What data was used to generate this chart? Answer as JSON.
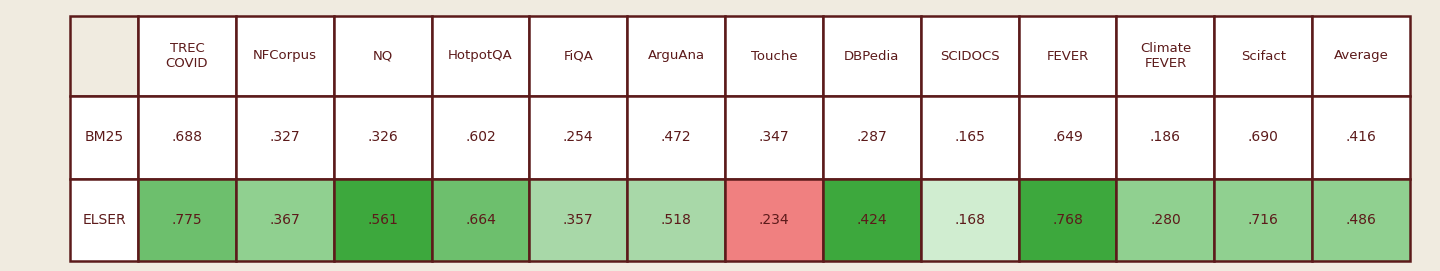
{
  "columns": [
    "TREC\nCOVID",
    "NFCorpus",
    "NQ",
    "HotpotQA",
    "FiQA",
    "ArguAna",
    "Touche",
    "DBPedia",
    "SCIDOCS",
    "FEVER",
    "Climate\nFEVER",
    "Scifact",
    "Average"
  ],
  "rows": [
    "BM25",
    "ELSER"
  ],
  "values": [
    [
      0.688,
      0.327,
      0.326,
      0.602,
      0.254,
      0.472,
      0.347,
      0.287,
      0.165,
      0.649,
      0.186,
      0.69,
      0.416
    ],
    [
      0.775,
      0.367,
      0.561,
      0.664,
      0.357,
      0.518,
      0.234,
      0.424,
      0.168,
      0.768,
      0.28,
      0.716,
      0.486
    ]
  ],
  "elser_colors": [
    "#7dc87d",
    "#90d090",
    "#4ab04a",
    "#7dc87d",
    "#b0ddb0",
    "#f5a9a0",
    "#4ab04a",
    "#d8eed8",
    "#4ab04a",
    "#b8ddb8",
    "#90d090",
    "#90d090"
  ],
  "border_color": "#5c1a1a",
  "text_color": "#5c1a1a",
  "cell_bg": "#ffffff",
  "fig_bg": "#ffffff",
  "outer_bg": "#f0ebe0"
}
